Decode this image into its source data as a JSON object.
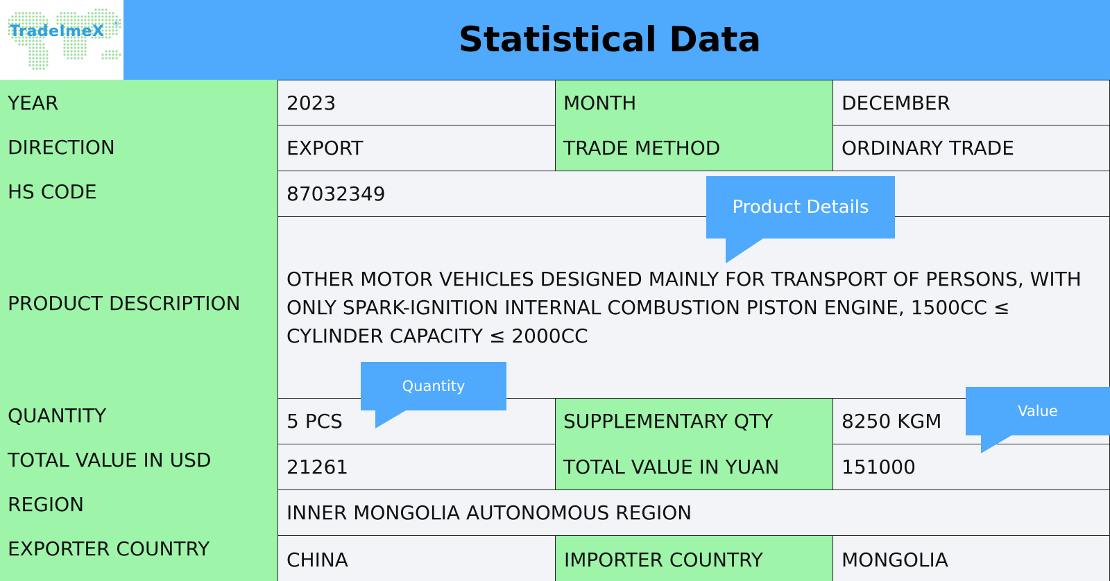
{
  "logo": {
    "text": "TradeImeX",
    "reg_mark": "®"
  },
  "header": {
    "title": "Statistical Data"
  },
  "labels": {
    "year": "YEAR",
    "direction": "DIRECTION",
    "hs_code": "HS CODE",
    "product_description": "PRODUCT DESCRIPTION",
    "quantity": "QUANTITY",
    "total_value_usd": "TOTAL VALUE IN USD",
    "region": "REGION",
    "exporter_country": "EXPORTER COUNTRY"
  },
  "fields": {
    "year": "2023",
    "month_label": "MONTH",
    "month": "DECEMBER",
    "direction": "EXPORT",
    "trade_method_label": "TRADE METHOD",
    "trade_method": "ORDINARY TRADE",
    "hs_code": "87032349",
    "product_description": "OTHER MOTOR VEHICLES DESIGNED MAINLY FOR TRANSPORT OF PERSONS, WITH ONLY SPARK-IGNITION INTERNAL COMBUSTION PISTON ENGINE, 1500CC ≤ CYLINDER CAPACITY ≤ 2000CC",
    "quantity": "5 PCS",
    "supplementary_qty_label": "SUPPLEMENTARY QTY",
    "supplementary_qty": "8250 KGM",
    "total_value_usd": "21261",
    "total_value_yuan_label": "TOTAL VALUE IN YUAN",
    "total_value_yuan": "151000",
    "region": "INNER MONGOLIA AUTONOMOUS REGION",
    "exporter_country": "CHINA",
    "importer_country_label": "IMPORTER COUNTRY",
    "importer_country": "MONGOLIA"
  },
  "callouts": {
    "product_details": "Product Details",
    "quantity": "Quantity",
    "value": "Value"
  },
  "colors": {
    "header_blue": "#4fa9fc",
    "label_green": "#9ef5a9",
    "cell_background": "#f3f4f8",
    "logo_blue": "#2f9fe0",
    "logo_dots": "#8fd88f"
  }
}
